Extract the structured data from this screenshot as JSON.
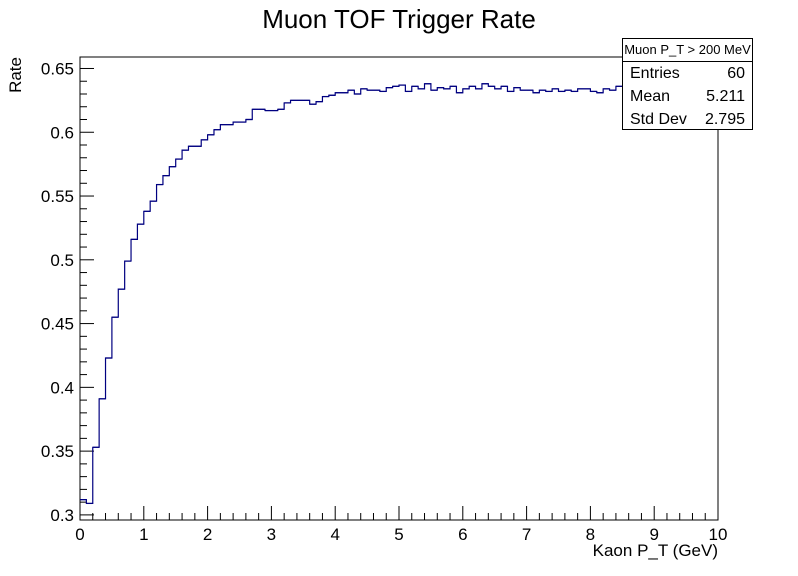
{
  "chart_data": {
    "type": "line",
    "style": "step-histogram",
    "title": "Muon TOF Trigger Rate",
    "xlabel": "Kaon P_T (GeV)",
    "ylabel": "Rate",
    "xlim": [
      0,
      10
    ],
    "ylim": [
      0.296,
      0.659
    ],
    "x_ticks": [
      "0",
      "1",
      "2",
      "3",
      "4",
      "5",
      "6",
      "7",
      "8",
      "9",
      "10"
    ],
    "y_ticks": [
      "0.3",
      "0.35",
      "0.4",
      "0.45",
      "0.5",
      "0.55",
      "0.6",
      "0.65"
    ],
    "bin_width": 0.1,
    "series": [
      {
        "color": "#000080",
        "bin_low_edges": [
          0.0,
          0.1,
          0.2,
          0.3,
          0.4,
          0.5,
          0.6,
          0.7,
          0.8,
          0.9,
          1.0,
          1.1,
          1.2,
          1.3,
          1.4,
          1.5,
          1.6,
          1.7,
          1.8,
          1.9,
          2.0,
          2.1,
          2.2,
          2.3,
          2.4,
          2.5,
          2.6,
          2.7,
          2.8,
          2.9,
          3.0,
          3.1,
          3.2,
          3.3,
          3.4,
          3.5,
          3.6,
          3.7,
          3.8,
          3.9,
          4.0,
          4.1,
          4.2,
          4.3,
          4.4,
          4.5,
          4.6,
          4.7,
          4.8,
          4.9,
          5.0,
          5.1,
          5.2,
          5.3,
          5.4,
          5.5,
          5.6,
          5.7,
          5.8,
          5.9,
          6.0,
          6.1,
          6.2,
          6.3,
          6.4,
          6.5,
          6.6,
          6.7,
          6.8,
          6.9,
          7.0,
          7.1,
          7.2,
          7.3,
          7.4,
          7.5,
          7.6,
          7.7,
          7.8,
          7.9,
          8.0,
          8.1,
          8.2,
          8.3,
          8.4,
          8.5,
          8.6,
          8.7,
          8.8,
          8.9,
          9.0,
          9.1,
          9.2,
          9.3,
          9.4,
          9.5,
          9.6,
          9.7,
          9.8,
          9.9
        ],
        "values": [
          0.312,
          0.309,
          0.353,
          0.391,
          0.423,
          0.455,
          0.477,
          0.499,
          0.516,
          0.528,
          0.538,
          0.546,
          0.559,
          0.566,
          0.573,
          0.579,
          0.586,
          0.589,
          0.589,
          0.594,
          0.598,
          0.602,
          0.606,
          0.606,
          0.608,
          0.608,
          0.61,
          0.618,
          0.618,
          0.617,
          0.617,
          0.618,
          0.623,
          0.625,
          0.625,
          0.625,
          0.622,
          0.624,
          0.628,
          0.629,
          0.631,
          0.631,
          0.633,
          0.63,
          0.634,
          0.633,
          0.633,
          0.632,
          0.635,
          0.636,
          0.637,
          0.632,
          0.636,
          0.634,
          0.638,
          0.633,
          0.635,
          0.634,
          0.636,
          0.631,
          0.634,
          0.636,
          0.634,
          0.638,
          0.636,
          0.634,
          0.636,
          0.632,
          0.635,
          0.633,
          0.633,
          0.631,
          0.633,
          0.632,
          0.634,
          0.632,
          0.633,
          0.632,
          0.634,
          0.634,
          0.632,
          0.631,
          0.634,
          0.633,
          0.636,
          0.636,
          0.633,
          0.632,
          0.634,
          0.632,
          0.633,
          0.634,
          0.633,
          0.632,
          0.634,
          0.632,
          0.633,
          0.633,
          0.635,
          0.633
        ]
      }
    ],
    "stats": {
      "name": "Muon P_T > 200 MeV",
      "entries_label": "Entries",
      "entries": "60",
      "mean_label": "Mean",
      "mean": "5.211",
      "std_label": "Std Dev",
      "std": "2.795"
    }
  }
}
